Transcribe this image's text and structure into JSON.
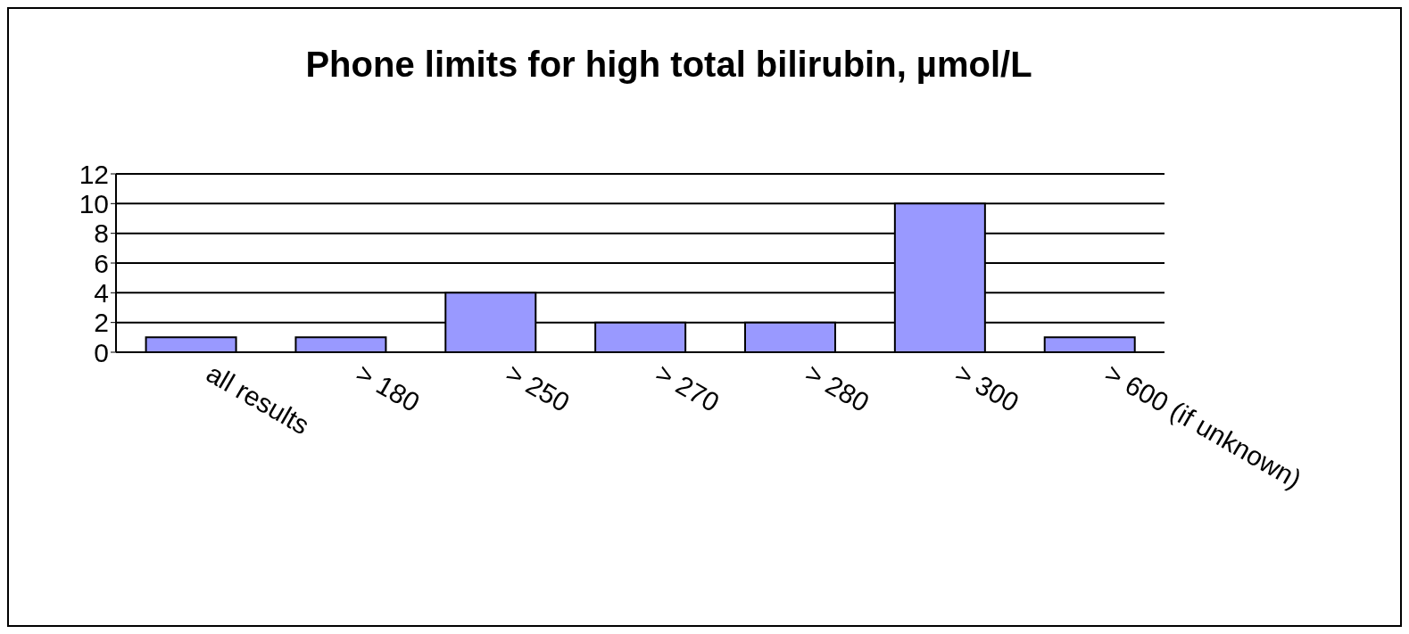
{
  "chart_data": {
    "type": "bar",
    "title": "Phone limits for high total bilirubin, µmol/L",
    "categories": [
      "all results",
      "> 180",
      "> 250",
      "> 270",
      "> 280",
      "> 300",
      "> 600 (if unknown)"
    ],
    "values": [
      1,
      1,
      4,
      2,
      2,
      10,
      1
    ],
    "color": "#9999ff",
    "ylim": [
      0,
      12
    ],
    "yticks": [
      0,
      2,
      4,
      6,
      8,
      10,
      12
    ],
    "grid": "y"
  }
}
